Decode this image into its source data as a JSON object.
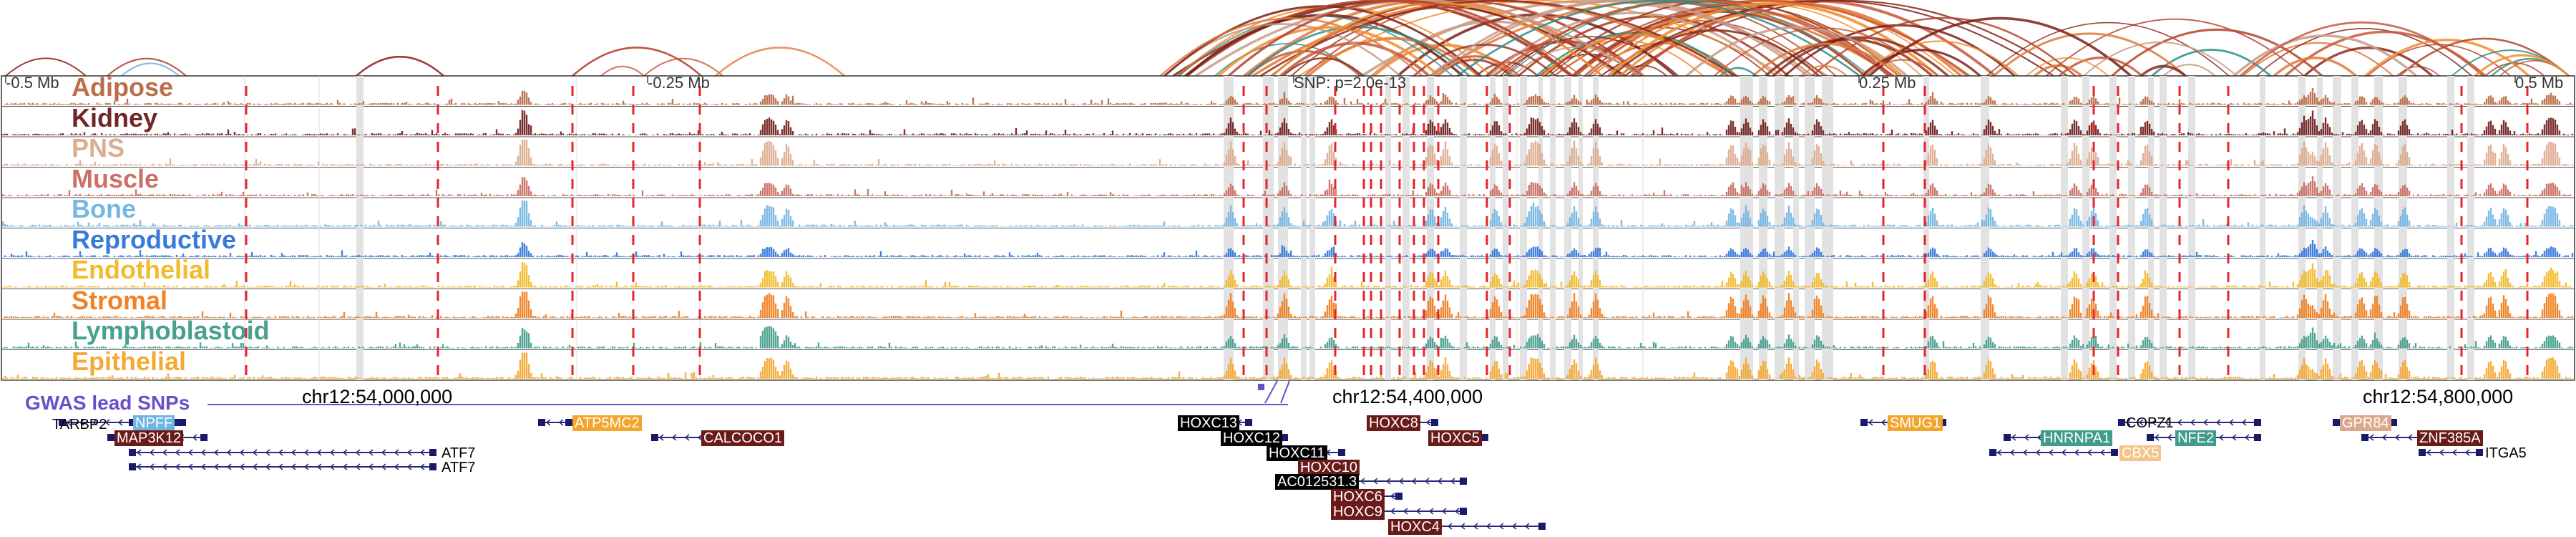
{
  "tracks": [
    {
      "name": "Adipose",
      "color": "#b8673f"
    },
    {
      "name": "Kidney",
      "color": "#6b1a1a"
    },
    {
      "name": "PNS",
      "color": "#dca88c"
    },
    {
      "name": "Muscle",
      "color": "#c8695c"
    },
    {
      "name": "Bone",
      "color": "#6fb4e2"
    },
    {
      "name": "Reproductive",
      "color": "#2f73d8"
    },
    {
      "name": "Endothelial",
      "color": "#f2b722"
    },
    {
      "name": "Stromal",
      "color": "#f07b1a"
    },
    {
      "name": "Lymphoblastoid",
      "color": "#3f9b8a"
    },
    {
      "name": "Epithelial",
      "color": "#f4a52b"
    }
  ],
  "axis_labels": {
    "left": "-0.5 Mb",
    "minus_quarter": "-0.25 Mb",
    "snp": "SNP: p=2.0e-13",
    "plus_quarter": "0.25 Mb",
    "right": "0.5 Mb"
  },
  "gwas_label": "GWAS lead SNPs",
  "coordinates": [
    "chr12:54,000,000",
    "chr12:54,400,000",
    "chr12:54,800,000"
  ],
  "genes": [
    {
      "name": "TARBP2",
      "style": "plain"
    },
    {
      "name": "NPFF",
      "style": "box",
      "color": "#6fb4e2"
    },
    {
      "name": "MAP3K12",
      "style": "box",
      "color": "#6b1a1a"
    },
    {
      "name": "ATF7",
      "style": "plain"
    },
    {
      "name": "ATF7",
      "style": "plain"
    },
    {
      "name": "ATP5MC2",
      "style": "box",
      "color": "#f4a52b"
    },
    {
      "name": "CALCOCO1",
      "style": "box",
      "color": "#6b1a1a"
    },
    {
      "name": "HOXC13",
      "style": "box",
      "color": "#000000"
    },
    {
      "name": "HOXC12",
      "style": "box",
      "color": "#000000"
    },
    {
      "name": "HOXC11",
      "style": "box",
      "color": "#000000"
    },
    {
      "name": "HOXC10",
      "style": "box",
      "color": "#6b1a1a"
    },
    {
      "name": "AC012531.3",
      "style": "box",
      "color": "#000000"
    },
    {
      "name": "HOXC6",
      "style": "box",
      "color": "#6b1a1a"
    },
    {
      "name": "HOXC9",
      "style": "box",
      "color": "#6b1a1a"
    },
    {
      "name": "HOXC4",
      "style": "box",
      "color": "#6b1a1a"
    },
    {
      "name": "HOXC8",
      "style": "box",
      "color": "#6b1a1a"
    },
    {
      "name": "HOXC5",
      "style": "box",
      "color": "#6b1a1a"
    },
    {
      "name": "SMUG1",
      "style": "box",
      "color": "#f4a52b"
    },
    {
      "name": "HNRNPA1",
      "style": "box",
      "color": "#3f9b8a"
    },
    {
      "name": "COPZ1",
      "style": "plain"
    },
    {
      "name": "NFE2",
      "style": "box",
      "color": "#3f9b8a"
    },
    {
      "name": "CBX5",
      "style": "box",
      "color": "#f4c48a"
    },
    {
      "name": "GPR84",
      "style": "box",
      "color": "#dca88c"
    },
    {
      "name": "ZNF385A",
      "style": "box",
      "color": "#6b1a1a"
    },
    {
      "name": "ITGA5",
      "style": "plain"
    }
  ]
}
